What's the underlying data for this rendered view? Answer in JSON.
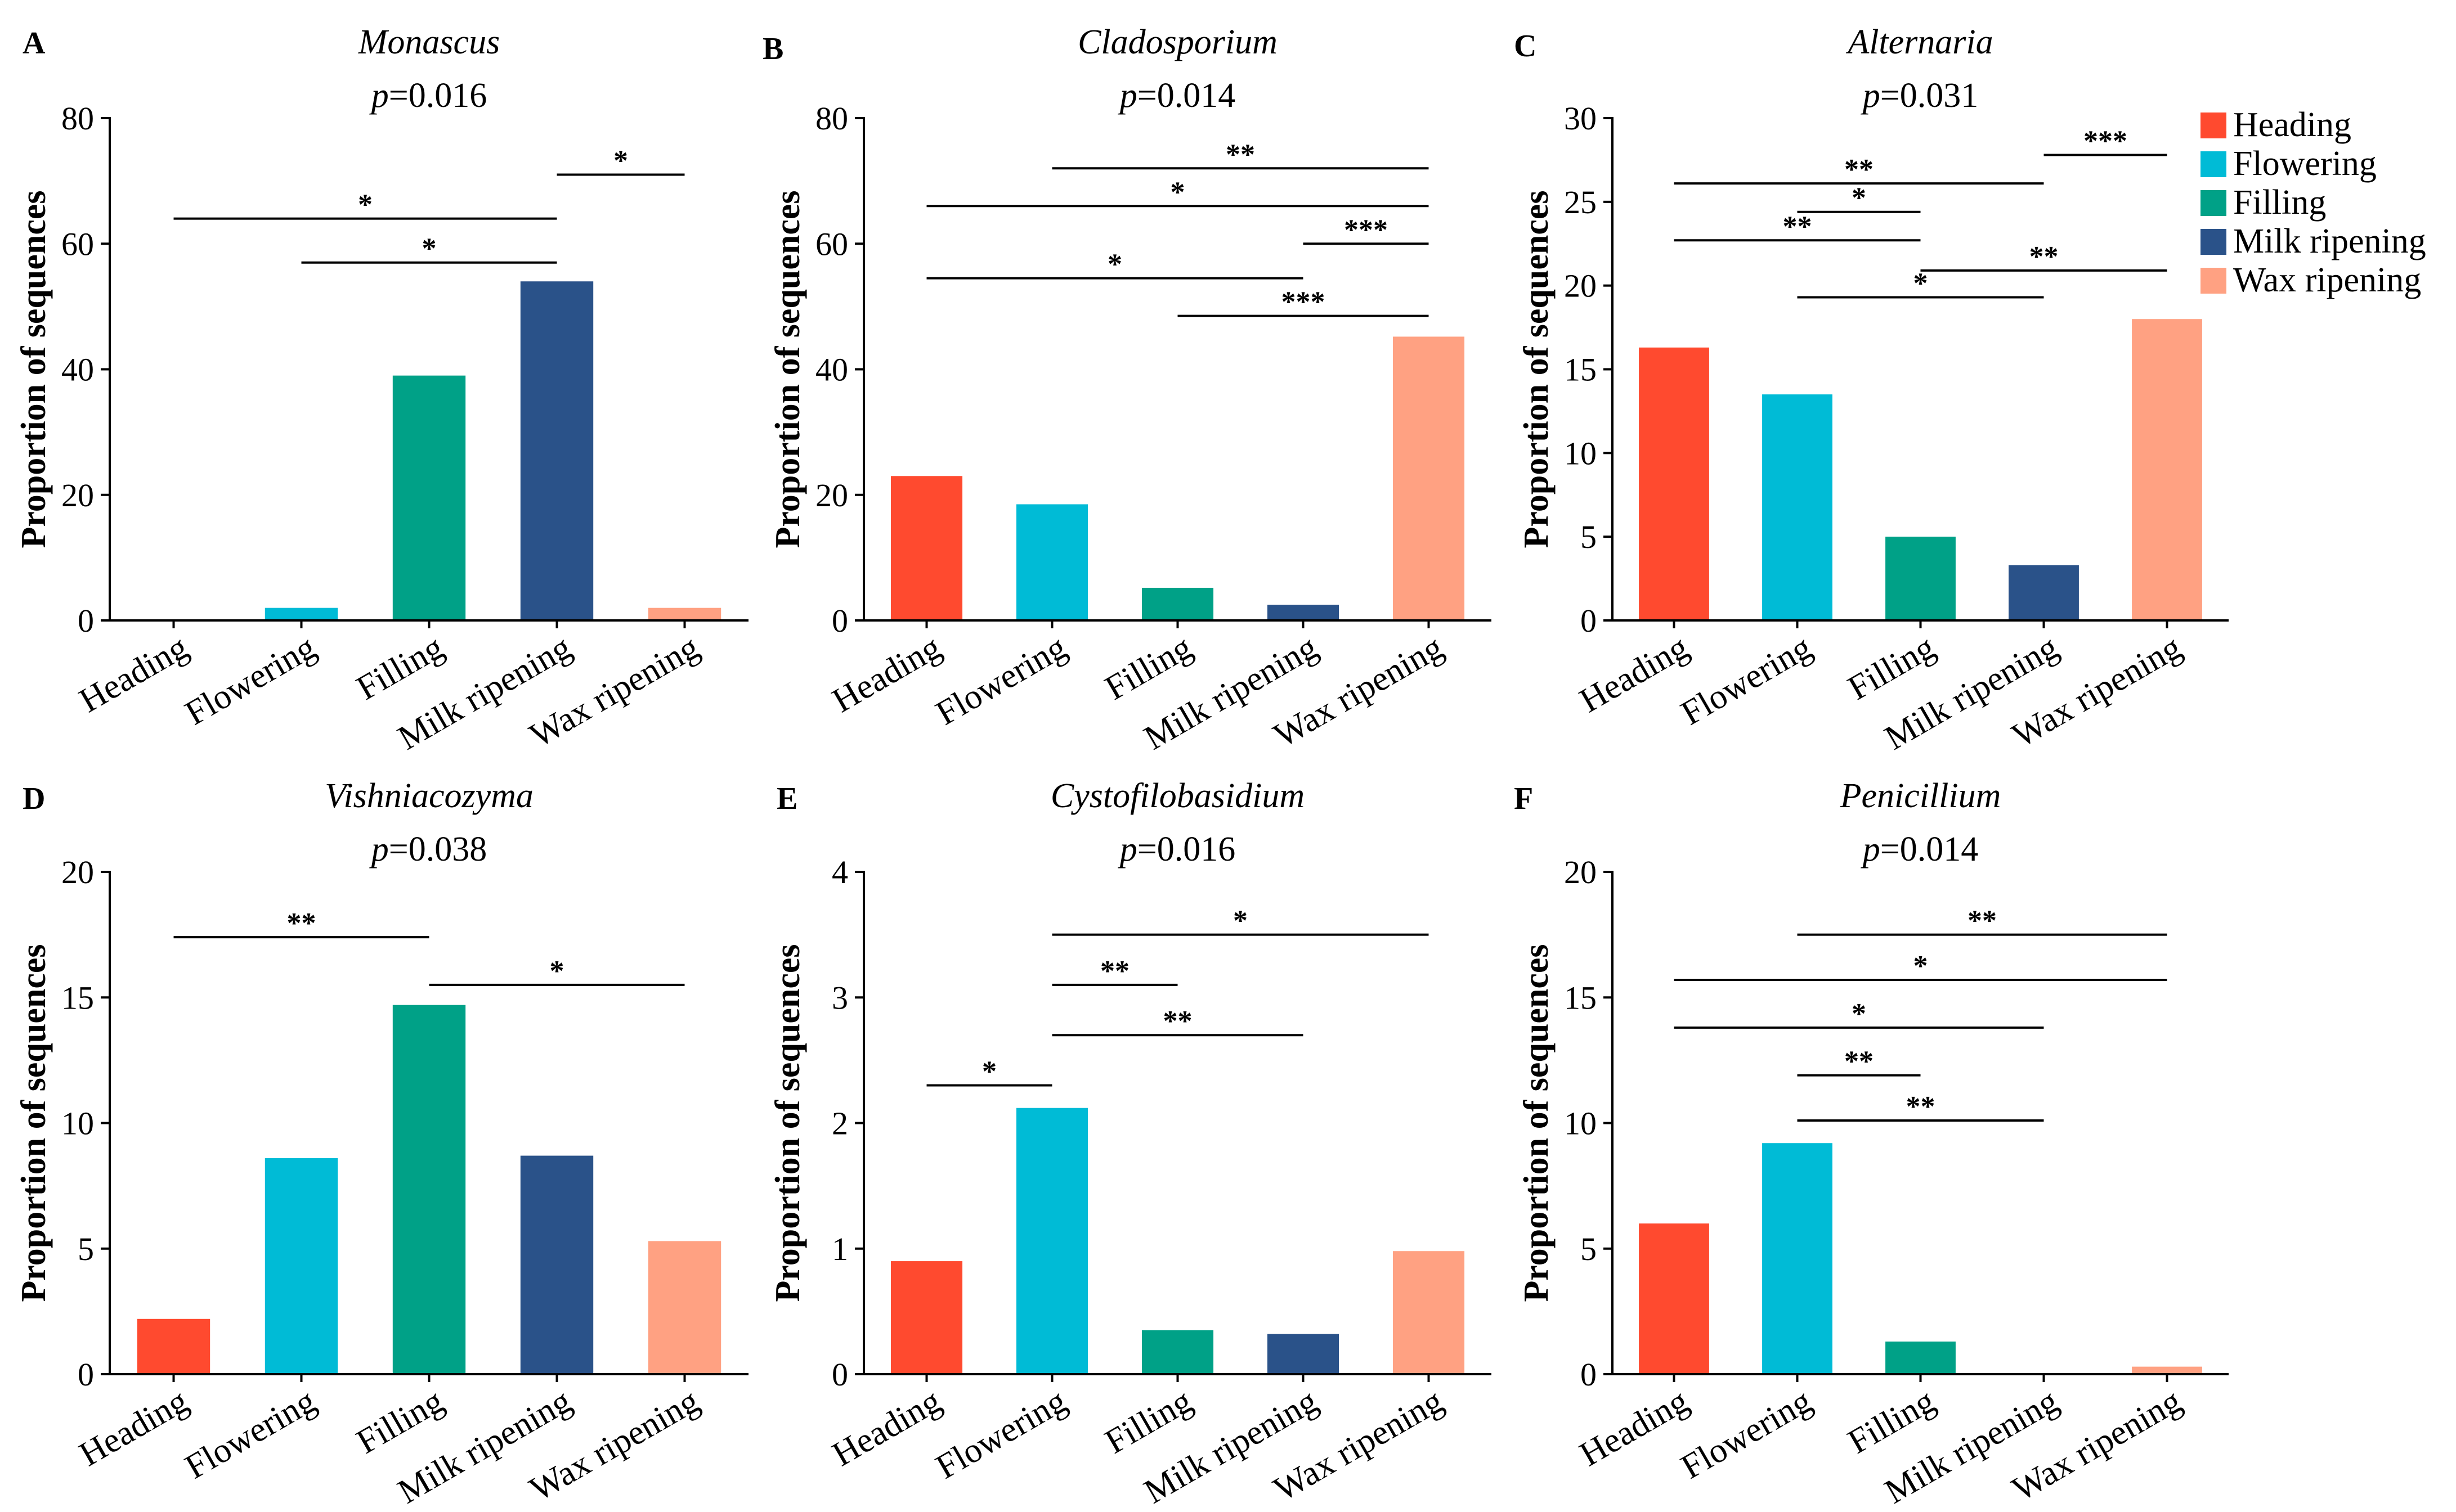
{
  "colors": {
    "Heading": "#ff4a2f",
    "Flowering": "#00bbd6",
    "Filling": "#00a187",
    "Milk ripening": "#2a5289",
    "Wax ripening": "#ffa182"
  },
  "legend": [
    "Heading",
    "Flowering",
    "Filling",
    "Milk ripening",
    "Wax ripening"
  ],
  "chart_data": [
    {
      "panel": "A",
      "type": "bar",
      "title": "Monascus",
      "p_label": "p",
      "p_value": "=0.016",
      "ylabel": "Proportion of sequences",
      "ylim": [
        0,
        80
      ],
      "yticks": [
        0,
        20,
        40,
        60,
        80
      ],
      "categories": [
        "Heading",
        "Flowering",
        "Filling",
        "Milk ripening",
        "Wax ripening"
      ],
      "values": [
        0,
        2,
        39,
        54,
        2
      ],
      "significance": [
        {
          "from": 3,
          "to": 4,
          "y": 71,
          "label": "*"
        },
        {
          "from": 0,
          "to": 3,
          "y": 64,
          "label": "*"
        },
        {
          "from": 1,
          "to": 3,
          "y": 57,
          "label": "*"
        }
      ]
    },
    {
      "panel": "B",
      "type": "bar",
      "title": "Cladosporium",
      "p_label": "p",
      "p_value": "=0.014",
      "ylabel": "Proportion of sequences",
      "ylim": [
        0,
        80
      ],
      "yticks": [
        0,
        20,
        40,
        60,
        80
      ],
      "categories": [
        "Heading",
        "Flowering",
        "Filling",
        "Milk ripening",
        "Wax ripening"
      ],
      "values": [
        23,
        18.5,
        5.2,
        2.5,
        45.2
      ],
      "significance": [
        {
          "from": 1,
          "to": 4,
          "y": 72,
          "label": "**"
        },
        {
          "from": 0,
          "to": 4,
          "y": 66,
          "label": "*"
        },
        {
          "from": 3,
          "to": 4,
          "y": 60,
          "label": "***"
        },
        {
          "from": 0,
          "to": 3,
          "y": 54.5,
          "label": "*"
        },
        {
          "from": 2,
          "to": 4,
          "y": 48.5,
          "label": "***"
        }
      ]
    },
    {
      "panel": "C",
      "type": "bar",
      "title": "Alternaria",
      "p_label": "p",
      "p_value": "=0.031",
      "ylabel": "Proportion of sequences",
      "ylim": [
        0,
        30
      ],
      "yticks": [
        0,
        5,
        10,
        15,
        20,
        25,
        30
      ],
      "categories": [
        "Heading",
        "Flowering",
        "Filling",
        "Milk ripening",
        "Wax ripening"
      ],
      "values": [
        16.3,
        13.5,
        5,
        3.3,
        18
      ],
      "significance": [
        {
          "from": 3,
          "to": 4,
          "y": 27.8,
          "label": "***"
        },
        {
          "from": 0,
          "to": 3,
          "y": 26.1,
          "label": "**"
        },
        {
          "from": 1,
          "to": 2,
          "y": 24.4,
          "label": "*"
        },
        {
          "from": 0,
          "to": 2,
          "y": 22.7,
          "label": "**"
        },
        {
          "from": 2,
          "to": 4,
          "y": 20.9,
          "label": "**"
        },
        {
          "from": 1,
          "to": 3,
          "y": 19.3,
          "label": "*"
        }
      ]
    },
    {
      "panel": "D",
      "type": "bar",
      "title": "Vishniacozyma",
      "p_label": "p",
      "p_value": "=0.038",
      "ylabel": "Proportion of sequences",
      "ylim": [
        0,
        20
      ],
      "yticks": [
        0,
        5,
        10,
        15,
        20
      ],
      "categories": [
        "Heading",
        "Flowering",
        "Filling",
        "Milk ripening",
        "Wax ripening"
      ],
      "values": [
        2.2,
        8.6,
        14.7,
        8.7,
        5.3
      ],
      "significance": [
        {
          "from": 0,
          "to": 2,
          "y": 17.4,
          "label": "**"
        },
        {
          "from": 2,
          "to": 4,
          "y": 15.5,
          "label": "*"
        }
      ]
    },
    {
      "panel": "E",
      "type": "bar",
      "title": "Cystofilobasidium",
      "p_label": "p",
      "p_value": "=0.016",
      "ylabel": "Proportion of sequences",
      "ylim": [
        0,
        4
      ],
      "yticks": [
        0,
        1,
        2,
        3,
        4
      ],
      "categories": [
        "Heading",
        "Flowering",
        "Filling",
        "Milk ripening",
        "Wax ripening"
      ],
      "values": [
        0.9,
        2.12,
        0.35,
        0.32,
        0.98
      ],
      "significance": [
        {
          "from": 1,
          "to": 4,
          "y": 3.5,
          "label": "*"
        },
        {
          "from": 1,
          "to": 2,
          "y": 3.1,
          "label": "**"
        },
        {
          "from": 1,
          "to": 3,
          "y": 2.7,
          "label": "**"
        },
        {
          "from": 0,
          "to": 1,
          "y": 2.3,
          "label": "*"
        }
      ]
    },
    {
      "panel": "F",
      "type": "bar",
      "title": "Penicillium",
      "p_label": "p",
      "p_value": "=0.014",
      "ylabel": "Proportion of sequences",
      "ylim": [
        0,
        20
      ],
      "yticks": [
        0,
        5,
        10,
        15,
        20
      ],
      "categories": [
        "Heading",
        "Flowering",
        "Filling",
        "Milk ripening",
        "Wax ripening"
      ],
      "values": [
        6,
        9.2,
        1.3,
        0,
        0.3
      ],
      "significance": [
        {
          "from": 1,
          "to": 4,
          "y": 17.5,
          "label": "**"
        },
        {
          "from": 0,
          "to": 4,
          "y": 15.7,
          "label": "*"
        },
        {
          "from": 0,
          "to": 3,
          "y": 13.8,
          "label": "*"
        },
        {
          "from": 1,
          "to": 2,
          "y": 11.9,
          "label": "**"
        },
        {
          "from": 1,
          "to": 3,
          "y": 10.1,
          "label": "**"
        }
      ]
    }
  ]
}
